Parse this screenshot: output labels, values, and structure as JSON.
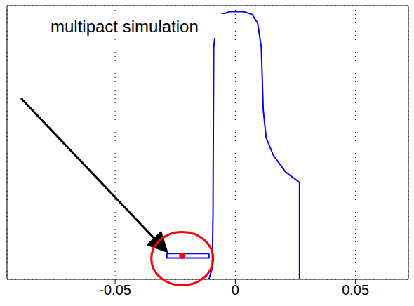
{
  "chart_data": {
    "type": "line",
    "annotation": "multipact simulation",
    "xlim": [
      -0.095,
      0.072
    ],
    "xticks": [
      -0.05,
      0,
      0.05
    ],
    "ylim": [
      0,
      0.115
    ],
    "yticks": [
      0,
      0.05,
      0.1
    ],
    "grid": true,
    "tick_labels": "x",
    "series": [
      {
        "type": "line",
        "color": "#0000ff",
        "line_style": "solid",
        "x": [
          -0.011,
          -0.0096,
          -0.0093,
          -0.009,
          -0.0081,
          -0.0058,
          -0.0023,
          0.0035,
          0.007,
          0.0093,
          0.0108,
          0.0116,
          0.0128,
          0.0157,
          0.0209,
          0.0267,
          0.0267
        ],
        "values": [
          0,
          0.0049,
          0.0276,
          0.0974,
          0.106,
          0.1113,
          0.1125,
          0.1125,
          0.1113,
          0.1076,
          0.0974,
          0.0712,
          0.0596,
          0.0523,
          0.0451,
          0.0407,
          0
        ]
      },
      {
        "type": "line",
        "color": "#0000ff",
        "line_style": "solid",
        "x": [
          -0.0285,
          -0.011,
          -0.011,
          -0.0285,
          -0.0285
        ],
        "values": [
          0.0108,
          0.0108,
          0.009,
          0.009,
          0.0108
        ]
      },
      {
        "type": "scatter",
        "color": "#ff0000",
        "marker": "circle",
        "x": [
          -0.0221
        ],
        "values": [
          0.0099
        ]
      }
    ]
  }
}
